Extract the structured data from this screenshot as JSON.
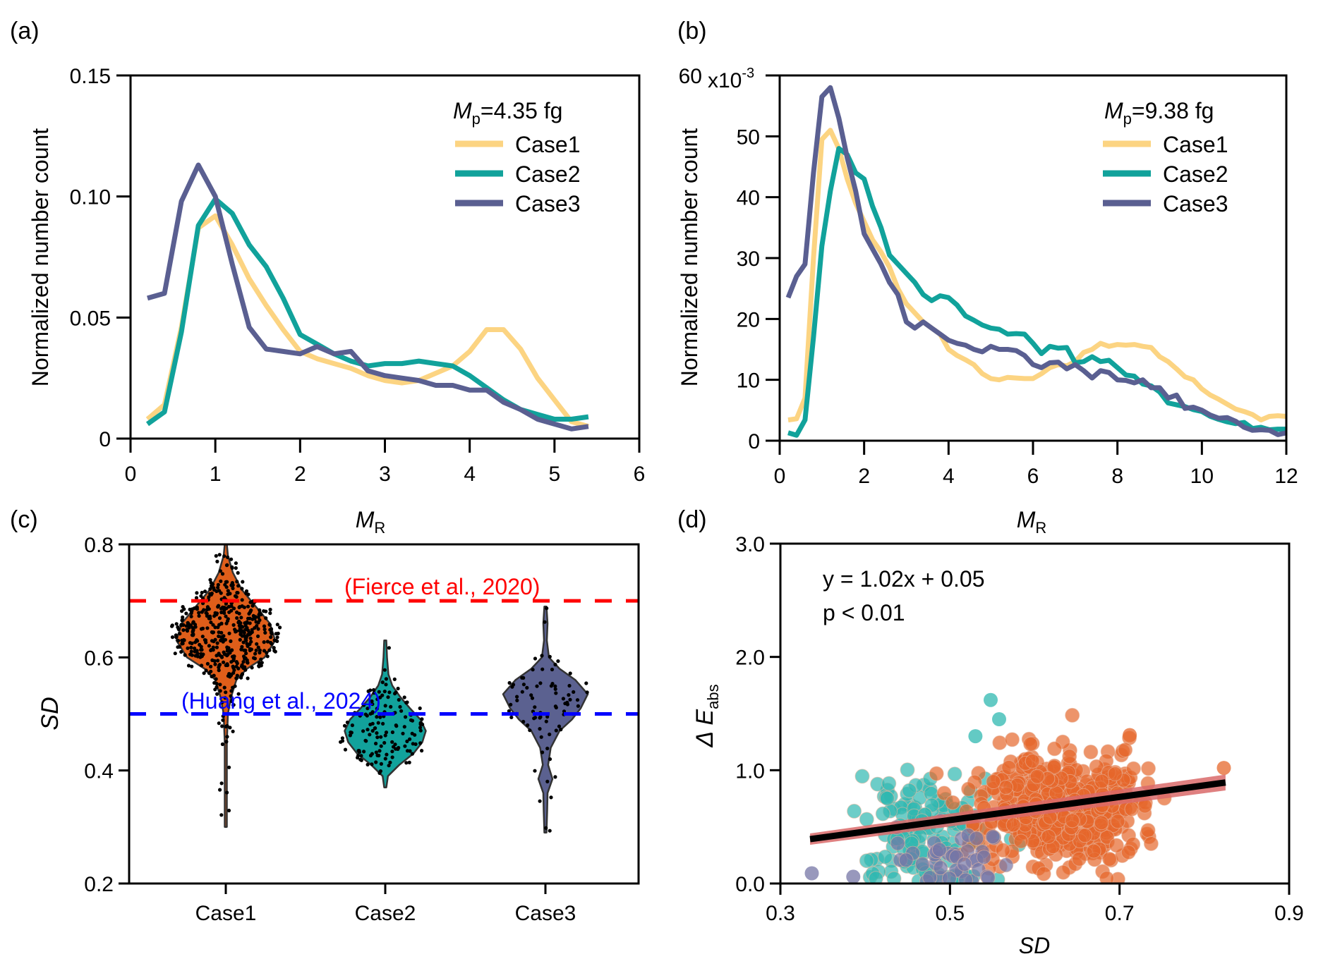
{
  "figure": {
    "panels": [
      "(a)",
      "(b)",
      "(c)",
      "(d)"
    ]
  },
  "colors": {
    "case1": "#fcd482",
    "case2": "#11a29b",
    "case3": "#5a5f91",
    "violin_case1": "#df5e1a",
    "violin_case2": "#12a29c",
    "violin_case3": "#5b6190",
    "fierce_line": "#ff0000",
    "huang_line": "#0000ff",
    "scatter_case1": "#e5672b",
    "scatter_case2": "#2fb8b0",
    "scatter_case3": "#7576a6",
    "fit_line": "#000000",
    "fit_band": "#d96a6a"
  },
  "chart_data": [
    {
      "id": "a",
      "panel_label": "(a)",
      "type": "line",
      "xlabel_main": "M",
      "xlabel_sub": "R",
      "ylabel": "Normalized number count",
      "xlim": [
        0,
        6
      ],
      "ylim": [
        0,
        0.15
      ],
      "xticks": [
        0,
        1,
        2,
        3,
        4,
        5,
        6
      ],
      "yticks": [
        0,
        0.05,
        0.1,
        0.15
      ],
      "ytick_labels": [
        "0",
        "0.05",
        "0.10",
        "0.15"
      ],
      "legend_title_main": "M",
      "legend_title_sub": "p",
      "legend_title_rest": "=4.35 fg",
      "legend_position": "top-right",
      "x": [
        0.2,
        0.4,
        0.6,
        0.8,
        1.0,
        1.2,
        1.4,
        1.6,
        1.8,
        2.0,
        2.2,
        2.4,
        2.6,
        2.8,
        3.0,
        3.2,
        3.4,
        3.6,
        3.8,
        4.0,
        4.2,
        4.4,
        4.6,
        4.8,
        5.0,
        5.2,
        5.4
      ],
      "series": [
        {
          "name": "Case1",
          "values": [
            0.008,
            0.014,
            0.046,
            0.087,
            0.092,
            0.08,
            0.066,
            0.055,
            0.045,
            0.036,
            0.033,
            0.031,
            0.029,
            0.026,
            0.024,
            0.023,
            0.024,
            0.027,
            0.03,
            0.036,
            0.045,
            0.045,
            0.037,
            0.025,
            0.016,
            0.007,
            0.005
          ]
        },
        {
          "name": "Case2",
          "values": [
            0.006,
            0.011,
            0.044,
            0.088,
            0.099,
            0.093,
            0.08,
            0.071,
            0.058,
            0.043,
            0.039,
            0.035,
            0.032,
            0.03,
            0.031,
            0.031,
            0.032,
            0.031,
            0.03,
            0.026,
            0.021,
            0.016,
            0.012,
            0.01,
            0.008,
            0.008,
            0.009
          ]
        },
        {
          "name": "Case3",
          "values": [
            0.058,
            0.06,
            0.098,
            0.113,
            0.1,
            0.072,
            0.046,
            0.037,
            0.036,
            0.035,
            0.038,
            0.035,
            0.036,
            0.028,
            0.026,
            0.025,
            0.024,
            0.022,
            0.022,
            0.02,
            0.02,
            0.015,
            0.012,
            0.008,
            0.006,
            0.004,
            0.005
          ]
        }
      ]
    },
    {
      "id": "b",
      "panel_label": "(b)",
      "type": "line",
      "xlabel_main": "M",
      "xlabel_sub": "R",
      "ylabel": "Normalized number count",
      "xlim": [
        0,
        12
      ],
      "ylim": [
        0,
        60
      ],
      "y_scale_label": "x10",
      "y_scale_exp": "-3",
      "xticks": [
        0,
        2,
        4,
        6,
        8,
        10,
        12
      ],
      "yticks": [
        0,
        10,
        20,
        30,
        40,
        50,
        60
      ],
      "ytick_labels": [
        "0",
        "10",
        "20",
        "30",
        "40",
        "50",
        "60"
      ],
      "legend_title_main": "M",
      "legend_title_sub": "p",
      "legend_title_rest": "=9.38 fg",
      "legend_position": "top-right",
      "x": [
        0.2,
        0.4,
        0.6,
        0.8,
        1.0,
        1.2,
        1.4,
        1.6,
        1.8,
        2.0,
        2.2,
        2.4,
        2.6,
        2.8,
        3.0,
        3.2,
        3.4,
        3.6,
        3.8,
        4.0,
        4.2,
        4.4,
        4.6,
        4.8,
        5.0,
        5.2,
        5.4,
        5.6,
        5.8,
        6.0,
        6.2,
        6.4,
        6.6,
        6.8,
        7.0,
        7.2,
        7.4,
        7.6,
        7.8,
        8.0,
        8.2,
        8.4,
        8.6,
        8.8,
        9.0,
        9.2,
        9.4,
        9.6,
        9.8,
        10.0,
        10.2,
        10.4,
        10.6,
        10.8,
        11.0,
        11.2,
        11.4,
        11.6,
        11.8,
        12.0
      ],
      "series": [
        {
          "name": "Case1",
          "values": [
            3.4,
            3.6,
            7.0,
            30.0,
            49.5,
            51.0,
            48.0,
            43.0,
            39.0,
            36.0,
            33.0,
            31.0,
            28.5,
            25.0,
            22.5,
            21.0,
            19.5,
            18.5,
            17.5,
            15.0,
            14.0,
            13.3,
            12.5,
            11.0,
            10.2,
            10.0,
            10.4,
            10.3,
            10.2,
            10.2,
            11.0,
            12.0,
            12.5,
            12.3,
            13.0,
            14.5,
            15.0,
            16.0,
            15.5,
            15.8,
            15.7,
            15.8,
            15.5,
            15.3,
            13.8,
            13.0,
            11.8,
            10.5,
            10.0,
            8.5,
            7.5,
            6.8,
            6.0,
            5.2,
            4.8,
            4.3,
            3.4,
            4.0,
            4.1,
            4.0
          ]
        },
        {
          "name": "Case2",
          "values": [
            1.3,
            0.9,
            3.4,
            17.0,
            32.0,
            41.0,
            48.0,
            47.0,
            44.0,
            43.0,
            38.5,
            35.0,
            30.5,
            29.0,
            27.5,
            26.0,
            24.0,
            23.0,
            23.8,
            23.5,
            22.3,
            20.5,
            19.8,
            19.0,
            18.5,
            18.3,
            17.5,
            17.6,
            17.5,
            16.0,
            14.3,
            15.5,
            15.2,
            15.3,
            12.8,
            13.0,
            13.8,
            13.0,
            13.2,
            12.0,
            10.8,
            10.6,
            9.3,
            9.0,
            8.0,
            6.2,
            5.9,
            5.6,
            5.1,
            4.8,
            4.0,
            3.5,
            3.1,
            2.8,
            3.0,
            2.0,
            2.2,
            1.8,
            1.9,
            1.9
          ]
        },
        {
          "name": "Case3",
          "values": [
            23.5,
            27.0,
            29.0,
            44.0,
            56.5,
            58.0,
            53.0,
            46.5,
            41.0,
            34.0,
            31.5,
            29.0,
            26.0,
            24.0,
            19.5,
            18.5,
            19.5,
            18.5,
            17.5,
            16.5,
            16.0,
            15.7,
            15.0,
            14.6,
            15.5,
            15.0,
            15.0,
            14.8,
            14.0,
            12.5,
            12.0,
            12.8,
            12.9,
            11.8,
            12.5,
            11.5,
            10.3,
            11.5,
            11.2,
            10.0,
            9.9,
            9.5,
            10.0,
            8.7,
            8.7,
            7.0,
            7.5,
            5.3,
            5.5,
            5.0,
            4.2,
            3.7,
            3.8,
            3.2,
            2.2,
            1.7,
            1.8,
            1.7,
            1.0,
            1.3
          ]
        }
      ]
    },
    {
      "id": "c",
      "panel_label": "(c)",
      "type": "violin",
      "ylabel": "SD",
      "ylim": [
        0.2,
        0.8
      ],
      "yticks": [
        0.2,
        0.4,
        0.6,
        0.8
      ],
      "ytick_labels": [
        "0.2",
        "0.4",
        "0.6",
        "0.8"
      ],
      "categories": [
        "Case1",
        "Case2",
        "Case3"
      ],
      "reference_lines": [
        {
          "label": "(Fierce et al., 2020)",
          "value": 0.7,
          "color_key": "fierce_line"
        },
        {
          "label": "(Huang et al., 2024)",
          "value": 0.5,
          "color_key": "huang_line"
        }
      ],
      "violins": [
        {
          "name": "Case1",
          "min": 0.3,
          "max": 0.8,
          "points_shown": 500,
          "profile": [
            [
              0.3,
              0.002
            ],
            [
              0.4,
              0.004
            ],
            [
              0.45,
              0.006
            ],
            [
              0.5,
              0.012
            ],
            [
              0.53,
              0.03
            ],
            [
              0.56,
              0.06
            ],
            [
              0.58,
              0.12
            ],
            [
              0.6,
              0.22
            ],
            [
              0.63,
              0.28
            ],
            [
              0.66,
              0.25
            ],
            [
              0.69,
              0.17
            ],
            [
              0.72,
              0.09
            ],
            [
              0.75,
              0.04
            ],
            [
              0.78,
              0.012
            ],
            [
              0.8,
              0.002
            ]
          ]
        },
        {
          "name": "Case2",
          "min": 0.37,
          "max": 0.63,
          "points_shown": 140,
          "profile": [
            [
              0.37,
              0.002
            ],
            [
              0.39,
              0.015
            ],
            [
              0.41,
              0.08
            ],
            [
              0.43,
              0.16
            ],
            [
              0.45,
              0.21
            ],
            [
              0.47,
              0.23
            ],
            [
              0.49,
              0.2
            ],
            [
              0.51,
              0.14
            ],
            [
              0.53,
              0.085
            ],
            [
              0.55,
              0.04
            ],
            [
              0.57,
              0.018
            ],
            [
              0.6,
              0.01
            ],
            [
              0.63,
              0.002
            ]
          ]
        },
        {
          "name": "Case3",
          "min": 0.29,
          "max": 0.69,
          "points_shown": 80,
          "profile": [
            [
              0.29,
              0.002
            ],
            [
              0.33,
              0.01
            ],
            [
              0.36,
              0.012
            ],
            [
              0.385,
              0.04
            ],
            [
              0.41,
              0.015
            ],
            [
              0.44,
              0.03
            ],
            [
              0.47,
              0.08
            ],
            [
              0.49,
              0.15
            ],
            [
              0.51,
              0.2
            ],
            [
              0.535,
              0.24
            ],
            [
              0.56,
              0.17
            ],
            [
              0.58,
              0.08
            ],
            [
              0.6,
              0.02
            ],
            [
              0.63,
              0.008
            ],
            [
              0.66,
              0.012
            ],
            [
              0.69,
              0.002
            ]
          ]
        }
      ]
    },
    {
      "id": "d",
      "panel_label": "(d)",
      "type": "scatter",
      "xlabel": "SD",
      "ylabel_main": "Δ E",
      "ylabel_sub": "abs",
      "xlim": [
        0.3,
        0.9
      ],
      "ylim": [
        0.0,
        3.0
      ],
      "xticks": [
        0.3,
        0.5,
        0.7,
        0.9
      ],
      "xtick_labels": [
        "0.3",
        "0.5",
        "0.7",
        "0.9"
      ],
      "yticks": [
        0.0,
        1.0,
        2.0,
        3.0
      ],
      "ytick_labels": [
        "0.0",
        "1.0",
        "2.0",
        "3.0"
      ],
      "annotation_eq": "y = 1.02x + 0.05",
      "annotation_p": "p < 0.01",
      "fit": {
        "slope": 1.02,
        "intercept": 0.05,
        "x_range": [
          0.335,
          0.825
        ]
      },
      "groups": [
        {
          "name": "Case1",
          "color_key": "scatter_case1",
          "n": 500,
          "x_mean": 0.63,
          "x_sd": 0.05,
          "y_mean": 0.68,
          "y_sd": 0.26
        },
        {
          "name": "Case2",
          "color_key": "scatter_case2",
          "n": 140,
          "x_mean": 0.47,
          "x_sd": 0.035,
          "y_mean": 0.45,
          "y_sd": 0.3
        },
        {
          "name": "Case3",
          "color_key": "scatter_case3",
          "n": 40,
          "x_mean": 0.51,
          "x_sd": 0.04,
          "y_mean": 0.22,
          "y_sd": 0.17
        }
      ],
      "highlighted_points": [
        {
          "group": "Case2",
          "x": 0.548,
          "y": 1.62
        },
        {
          "group": "Case2",
          "x": 0.558,
          "y": 1.45
        },
        {
          "group": "Case2",
          "x": 0.53,
          "y": 1.3
        },
        {
          "group": "Case1",
          "x": 0.823,
          "y": 1.02
        },
        {
          "group": "Case1",
          "x": 0.712,
          "y": 1.31
        },
        {
          "group": "Case3",
          "x": 0.337,
          "y": 0.09
        },
        {
          "group": "Case3",
          "x": 0.386,
          "y": 0.06
        }
      ]
    }
  ]
}
